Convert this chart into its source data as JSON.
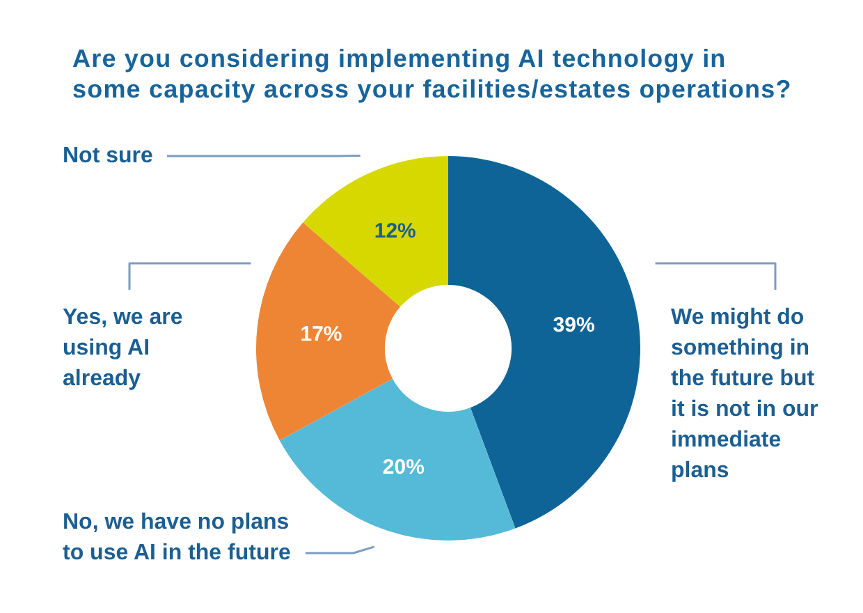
{
  "chart_data": {
    "type": "donut",
    "title": "Are you considering implementing AI technology in some capacity across your facilities/estates operations?",
    "categories": [
      "We might do something in the future but it is not in our immediate plans",
      "No, we have no plans to use AI in the future",
      "Yes, we are using AI already",
      "Not sure"
    ],
    "values": [
      39,
      20,
      17,
      12
    ],
    "colors": [
      "#0f6497",
      "#55bad7",
      "#ee8535",
      "#d6d800"
    ],
    "value_labels": [
      "39%",
      "20%",
      "17%",
      "12%"
    ]
  }
}
